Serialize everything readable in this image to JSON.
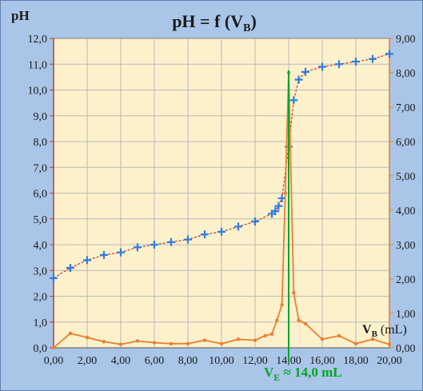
{
  "chart_data": {
    "type": "line",
    "title_main": "pH = f (V",
    "title_sub": "B",
    "title_close": ")",
    "ylabel": "pH",
    "xlabel_main": "V",
    "xlabel_sub": "B",
    "xlabel_unit": " (mL)",
    "x_range": [
      0,
      20
    ],
    "y_left_range": [
      0,
      12
    ],
    "y_right_range": [
      0,
      9
    ],
    "x_ticks": [
      "0,00",
      "2,00",
      "4,00",
      "6,00",
      "8,00",
      "10,00",
      "12,00",
      "14,00",
      "16,00",
      "18,00",
      "20,00"
    ],
    "y_left_ticks": [
      "0,0",
      "1,0",
      "2,0",
      "3,0",
      "4,0",
      "5,0",
      "6,0",
      "7,0",
      "8,0",
      "9,0",
      "10,0",
      "11,0",
      "12,0"
    ],
    "y_right_ticks": [
      "0,00",
      "1,00",
      "2,00",
      "3,00",
      "4,00",
      "5,00",
      "6,00",
      "7,00",
      "8,00",
      "9,00"
    ],
    "grid": true,
    "series": [
      {
        "axis": "left",
        "color": "#2f7de0",
        "x": [
          0,
          1,
          2,
          3,
          4,
          5,
          6,
          7,
          8,
          9,
          10,
          11,
          12,
          13,
          13.2,
          13.4,
          13.6,
          14,
          14.3,
          14.6,
          15,
          16,
          17,
          18,
          19,
          20
        ],
        "y": [
          2.7,
          3.1,
          3.4,
          3.6,
          3.7,
          3.9,
          4.0,
          4.1,
          4.2,
          4.4,
          4.5,
          4.7,
          4.9,
          5.2,
          5.3,
          5.5,
          5.8,
          7.8,
          9.6,
          10.4,
          10.7,
          10.9,
          11.0,
          11.1,
          11.2,
          11.4
        ]
      },
      {
        "axis": "right",
        "color": "#ec7d2f",
        "x": [
          0,
          1,
          2,
          3,
          4,
          5,
          6,
          7,
          8,
          9,
          10,
          11,
          12,
          12.6,
          13,
          13.3,
          13.6,
          13.8,
          14,
          14.3,
          14.6,
          15,
          16,
          17,
          18,
          19,
          20
        ],
        "y": [
          0,
          0.42,
          0.3,
          0.18,
          0.1,
          0.2,
          0.15,
          0.12,
          0.12,
          0.22,
          0.12,
          0.25,
          0.22,
          0.35,
          0.4,
          0.8,
          1.25,
          4.5,
          8.0,
          1.6,
          0.8,
          0.7,
          0.25,
          0.35,
          0.12,
          0.25,
          0.1
        ]
      }
    ],
    "equivalence": {
      "x": 14.0,
      "label_main": "V",
      "label_sub": "E",
      "label_rest": " ≈ 14,0 mL",
      "color": "#0aa22a"
    }
  }
}
